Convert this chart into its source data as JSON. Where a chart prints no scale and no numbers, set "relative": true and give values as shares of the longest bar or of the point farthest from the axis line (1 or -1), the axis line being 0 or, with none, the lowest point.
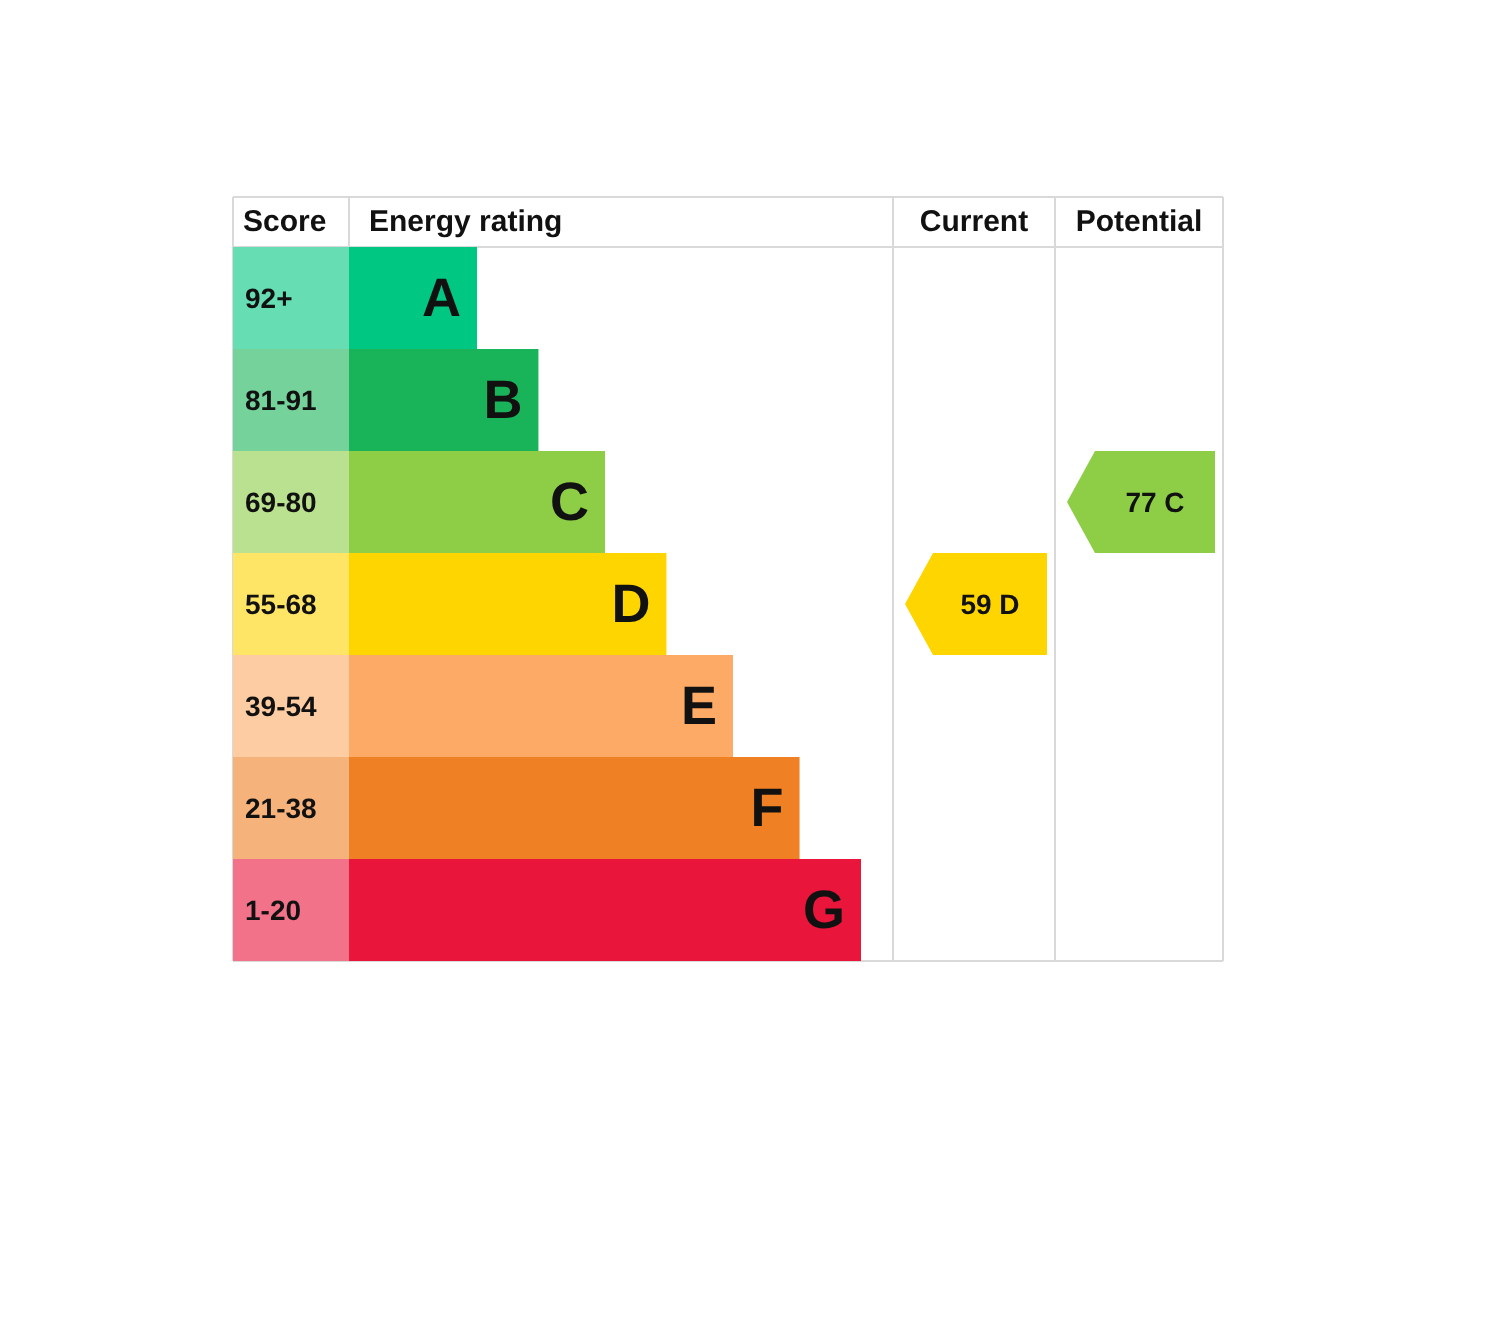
{
  "chart_data": {
    "type": "bar",
    "orientation": "horizontal",
    "relative": true,
    "categories": [
      "A",
      "B",
      "C",
      "D",
      "E",
      "F",
      "G"
    ],
    "values": [
      0.25,
      0.37,
      0.5,
      0.62,
      0.75,
      0.88,
      1
    ],
    "colors": [
      "#00c781",
      "#19b459",
      "#8dce46",
      "#ffd500",
      "#fcaa65",
      "#ef8023",
      "#e9153b"
    ],
    "data_labels": false,
    "annotations": [
      "Score",
      "Energy rating",
      "Current",
      "Potential",
      "92+",
      "81-91",
      "69-80",
      "55-68",
      "39-54",
      "21-38",
      "1-20",
      "59 D",
      "77 C"
    ]
  }
}
